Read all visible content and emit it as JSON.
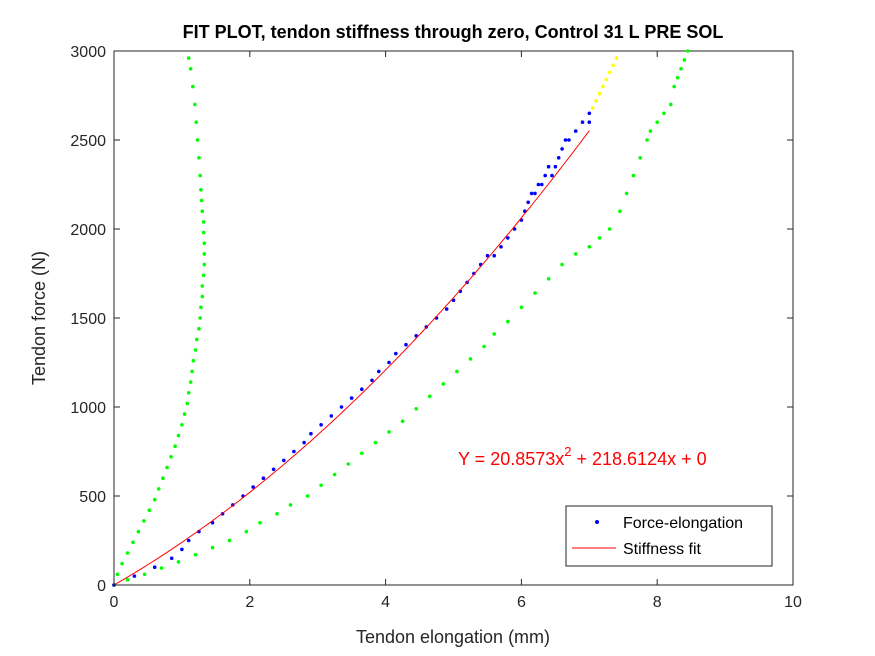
{
  "chart_data": {
    "type": "scatter",
    "title": "FIT PLOT, tendon stiffness through zero, Control 31 L PRE SOL",
    "xlabel": "Tendon elongation (mm)",
    "ylabel": "Tendon force (N)",
    "xlim": [
      0,
      10
    ],
    "ylim": [
      0,
      3000
    ],
    "xticks": [
      "0",
      "2",
      "4",
      "6",
      "8",
      "10"
    ],
    "yticks": [
      "0",
      "500",
      "1000",
      "1500",
      "2000",
      "2500",
      "3000"
    ],
    "grid": false,
    "legend_position": "bottom-right",
    "fit_equation": {
      "prefix": "Y = 20.8573x",
      "exponent": "2",
      "suffix": " + 218.6124x + 0",
      "color": "#ff0000"
    },
    "fit_coefficients": {
      "a": 20.8573,
      "b": 218.6124,
      "c": 0,
      "x_range": [
        0,
        7.0
      ]
    },
    "series": [
      {
        "name": "Force-elongation",
        "marker": "dot",
        "color": "#0000ff",
        "x": [
          0.0,
          0.3,
          0.6,
          0.85,
          1.0,
          1.1,
          1.25,
          1.45,
          1.6,
          1.75,
          1.9,
          2.05,
          2.2,
          2.35,
          2.5,
          2.65,
          2.8,
          2.9,
          3.05,
          3.2,
          3.35,
          3.5,
          3.65,
          3.8,
          3.9,
          4.05,
          4.15,
          4.3,
          4.45,
          4.6,
          4.75,
          4.9,
          5.0,
          5.1,
          5.2,
          5.3,
          5.4,
          5.5,
          5.6,
          5.7,
          5.8,
          5.9,
          6.0,
          6.05,
          6.1,
          6.15,
          6.2,
          6.25,
          6.3,
          6.35,
          6.4,
          6.45,
          6.5,
          6.55,
          6.6,
          6.65,
          6.7,
          6.8,
          6.9,
          7.0,
          7.0
        ],
        "y": [
          0,
          50,
          100,
          150,
          200,
          250,
          300,
          350,
          400,
          450,
          500,
          550,
          600,
          650,
          700,
          750,
          800,
          850,
          900,
          950,
          1000,
          1050,
          1100,
          1150,
          1200,
          1250,
          1300,
          1350,
          1400,
          1450,
          1500,
          1550,
          1600,
          1650,
          1700,
          1750,
          1800,
          1850,
          1850,
          1900,
          1950,
          2000,
          2050,
          2100,
          2150,
          2200,
          2200,
          2250,
          2250,
          2300,
          2350,
          2300,
          2350,
          2400,
          2450,
          2500,
          2500,
          2550,
          2600,
          2600,
          2650
        ]
      },
      {
        "name": "",
        "marker": "dot",
        "color": "#00ff00",
        "x": [
          0.0,
          0.05,
          0.12,
          0.2,
          0.28,
          0.36,
          0.44,
          0.52,
          0.6,
          0.66,
          0.72,
          0.78,
          0.84,
          0.9,
          0.95,
          1.0,
          1.04,
          1.08,
          1.1,
          1.13,
          1.15,
          1.17,
          1.2,
          1.22,
          1.25,
          1.27,
          1.28,
          1.3,
          1.3,
          1.32,
          1.33,
          1.33,
          1.33,
          1.32,
          1.32,
          1.3,
          1.29,
          1.28,
          1.27,
          1.25,
          1.23,
          1.21,
          1.19,
          1.16,
          1.13,
          1.1
        ],
        "y": [
          0,
          60,
          120,
          180,
          240,
          300,
          360,
          420,
          480,
          540,
          600,
          660,
          720,
          780,
          840,
          900,
          960,
          1020,
          1080,
          1140,
          1200,
          1260,
          1320,
          1380,
          1440,
          1500,
          1560,
          1620,
          1680,
          1740,
          1800,
          1860,
          1920,
          1980,
          2040,
          2100,
          2160,
          2220,
          2300,
          2400,
          2500,
          2600,
          2700,
          2800,
          2900,
          2960
        ]
      },
      {
        "name": "",
        "marker": "dot",
        "color": "#00ff00",
        "x": [
          0.0,
          0.2,
          0.45,
          0.7,
          0.95,
          1.2,
          1.45,
          1.7,
          1.95,
          2.15,
          2.4,
          2.6,
          2.85,
          3.05,
          3.25,
          3.45,
          3.65,
          3.85,
          4.05,
          4.25,
          4.45,
          4.65,
          4.85,
          5.05,
          5.25,
          5.45,
          5.6,
          5.8,
          6.0,
          6.2,
          6.4,
          6.6,
          6.8,
          7.0,
          7.15,
          7.3,
          7.45,
          7.55,
          7.65,
          7.75,
          7.85,
          7.9,
          8.0,
          8.1,
          8.2,
          8.25,
          8.3,
          8.35,
          8.4,
          8.45
        ],
        "y": [
          0,
          30,
          60,
          95,
          130,
          170,
          210,
          250,
          300,
          350,
          400,
          450,
          500,
          560,
          620,
          680,
          740,
          800,
          860,
          920,
          990,
          1060,
          1130,
          1200,
          1270,
          1340,
          1410,
          1480,
          1560,
          1640,
          1720,
          1800,
          1860,
          1900,
          1950,
          2000,
          2100,
          2200,
          2300,
          2400,
          2500,
          2550,
          2600,
          2650,
          2700,
          2800,
          2850,
          2900,
          2950,
          3000
        ]
      },
      {
        "name": "",
        "marker": "dot",
        "color": "#ffff00",
        "x": [
          7.05,
          7.1,
          7.15,
          7.2,
          7.25,
          7.3,
          7.35,
          7.4
        ],
        "y": [
          2680,
          2720,
          2760,
          2800,
          2840,
          2880,
          2920,
          2960
        ]
      },
      {
        "name": "Stiffness fit",
        "marker": "line",
        "color": "#ff0000"
      }
    ]
  }
}
